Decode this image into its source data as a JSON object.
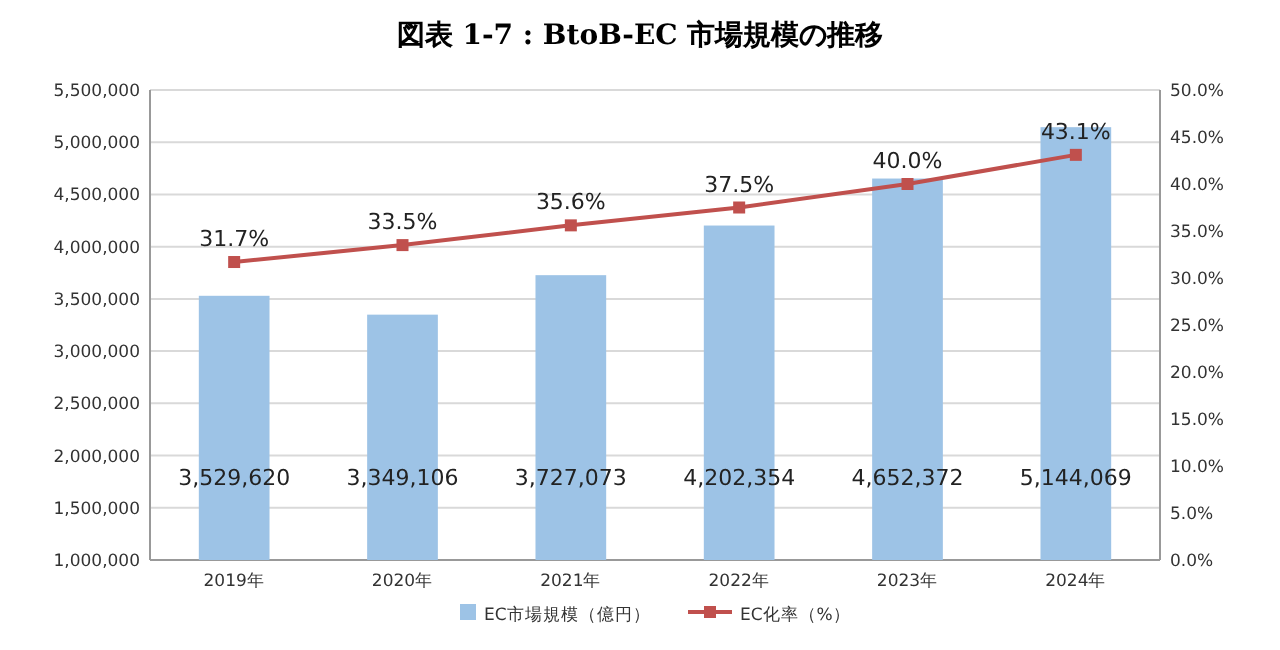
{
  "chart_data": {
    "type": "bar",
    "title": "図表 1-7 : BtoB-EC 市場規模の推移",
    "categories": [
      "2019年",
      "2020年",
      "2021年",
      "2022年",
      "2023年",
      "2024年"
    ],
    "series": [
      {
        "name": "EC市場規模（億円）",
        "color": "#9dc3e6",
        "values": [
          3529620,
          3349106,
          3727073,
          4202354,
          4652372,
          5144069
        ],
        "value_labels": [
          "3,529,620",
          "3,349,106",
          "3,727,073",
          "4,202,354",
          "4,652,372",
          "5,144,069"
        ]
      },
      {
        "name": "EC化率（%）",
        "type": "line",
        "axis": "y2",
        "color": "#c0504d",
        "marker": "square",
        "line_style": "solid",
        "values": [
          31.7,
          33.5,
          35.6,
          37.5,
          40.0,
          43.1
        ],
        "value_labels": [
          "31.7%",
          "33.5%",
          "35.6%",
          "37.5%",
          "40.0%",
          "43.1%"
        ]
      }
    ],
    "ylim": [
      1000000,
      5500000
    ],
    "yticks": [
      {
        "value": 1000000,
        "label": "1,000,000"
      },
      {
        "value": 1500000,
        "label": "1,500,000"
      },
      {
        "value": 2000000,
        "label": "2,000,000"
      },
      {
        "value": 2500000,
        "label": "2,500,000"
      },
      {
        "value": 3000000,
        "label": "3,000,000"
      },
      {
        "value": 3500000,
        "label": "3,500,000"
      },
      {
        "value": 4000000,
        "label": "4,000,000"
      },
      {
        "value": 4500000,
        "label": "4,500,000"
      },
      {
        "value": 5000000,
        "label": "5,000,000"
      },
      {
        "value": 5500000,
        "label": "5,500,000"
      }
    ],
    "y2lim": [
      0,
      50
    ],
    "y2ticks": [
      {
        "value": 0,
        "label": "0.0%"
      },
      {
        "value": 5,
        "label": "5.0%"
      },
      {
        "value": 10,
        "label": "10.0%"
      },
      {
        "value": 15,
        "label": "15.0%"
      },
      {
        "value": 20,
        "label": "20.0%"
      },
      {
        "value": 25,
        "label": "25.0%"
      },
      {
        "value": 30,
        "label": "30.0%"
      },
      {
        "value": 35,
        "label": "35.0%"
      },
      {
        "value": 40,
        "label": "40.0%"
      },
      {
        "value": 45,
        "label": "45.0%"
      },
      {
        "value": 50,
        "label": "50.0%"
      }
    ],
    "grid": "y",
    "legend": "bottom"
  }
}
